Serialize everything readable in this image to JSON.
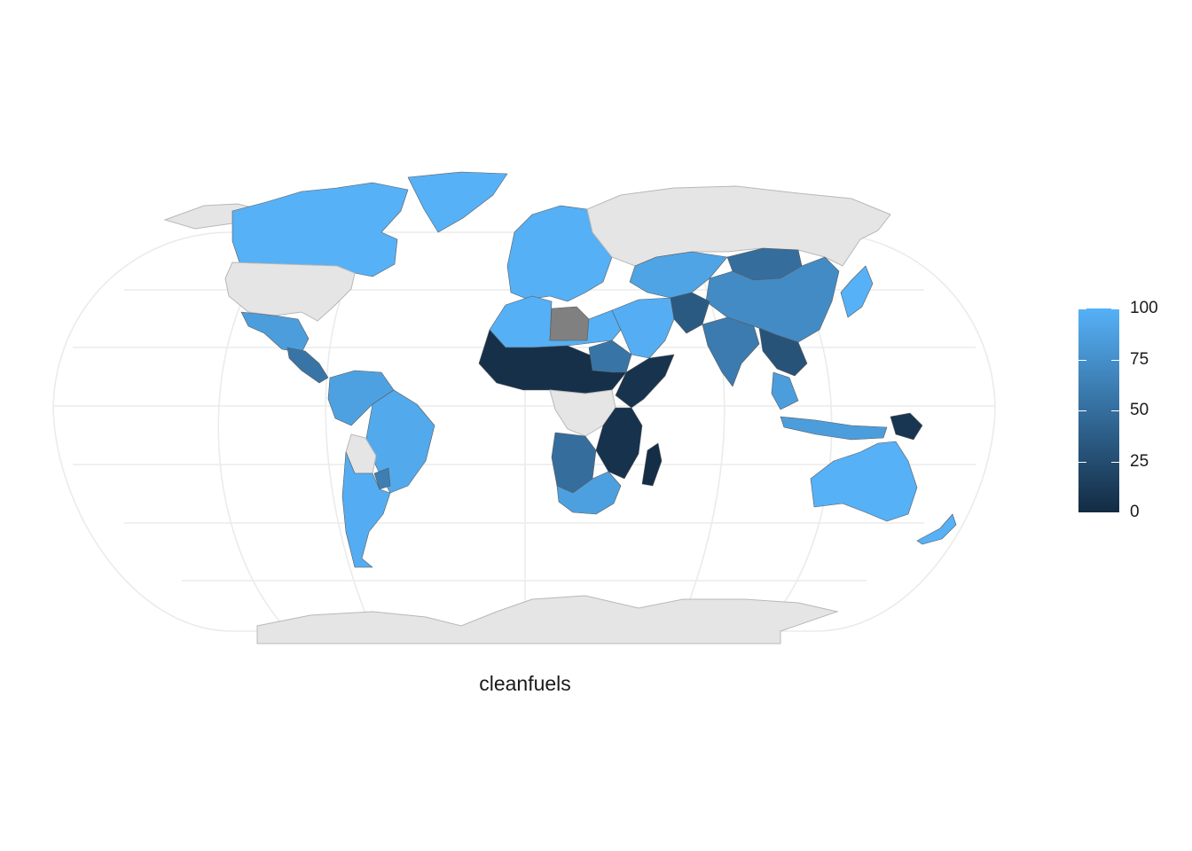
{
  "map": {
    "caption": "cleanfuels",
    "fill_variable": "cleanfuels",
    "projection": "robinson",
    "colors": {
      "low": "#132B43",
      "high": "#56B1F7",
      "na": "#808080",
      "missing": "#e5e5e5",
      "graticule": "#ebebeb"
    }
  },
  "legend": {
    "min": 0,
    "max": 100,
    "ticks": [
      "100",
      "75",
      "50",
      "25",
      "0"
    ]
  },
  "regions": [
    {
      "name": "Canada",
      "value": 100
    },
    {
      "name": "Greenland",
      "value": 100
    },
    {
      "name": "United States",
      "value": null
    },
    {
      "name": "Mexico",
      "value": 85
    },
    {
      "name": "Central America",
      "value": 55
    },
    {
      "name": "Brazil",
      "value": 94
    },
    {
      "name": "Northern South America",
      "value": 88
    },
    {
      "name": "Bolivia",
      "value": null
    },
    {
      "name": "Paraguay",
      "value": 62
    },
    {
      "name": "Argentina-Chile",
      "value": 97
    },
    {
      "name": "Europe",
      "value": 99
    },
    {
      "name": "Russia",
      "value": null
    },
    {
      "name": "North Africa",
      "value": 99
    },
    {
      "name": "Libya",
      "value": "NA"
    },
    {
      "name": "Sahel",
      "value": 4
    },
    {
      "name": "Sudan",
      "value": 55
    },
    {
      "name": "Ethiopia-Horn",
      "value": 6
    },
    {
      "name": "Central Africa",
      "value": null
    },
    {
      "name": "Angola",
      "value": 50
    },
    {
      "name": "East Africa",
      "value": 5
    },
    {
      "name": "Madagascar",
      "value": 2
    },
    {
      "name": "South Africa",
      "value": 87
    },
    {
      "name": "Middle East",
      "value": 98
    },
    {
      "name": "Central Asia",
      "value": 90
    },
    {
      "name": "Mongolia",
      "value": 50
    },
    {
      "name": "China",
      "value": 72
    },
    {
      "name": "Pakistan-Afghanistan",
      "value": 35
    },
    {
      "name": "India",
      "value": 60
    },
    {
      "name": "Myanmar-Indochina",
      "value": 30
    },
    {
      "name": "Thailand-Malaysia",
      "value": 85
    },
    {
      "name": "Indonesia",
      "value": 85
    },
    {
      "name": "Papua New Guinea",
      "value": 8
    },
    {
      "name": "Australia",
      "value": 100
    },
    {
      "name": "New Zealand",
      "value": 100
    },
    {
      "name": "Japan-Korea",
      "value": 100
    },
    {
      "name": "Antarctica",
      "value": null
    }
  ]
}
